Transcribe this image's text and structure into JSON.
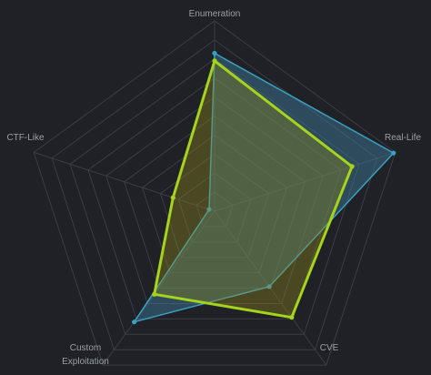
{
  "chart_data": {
    "type": "radar",
    "axes": [
      "Enumeration",
      "Real-Life",
      "CVE",
      "Custom Exploitation",
      "CTF-Like"
    ],
    "axis_label_lines": [
      [
        "Enumeration"
      ],
      [
        "Real-Life"
      ],
      [
        "CVE"
      ],
      [
        "Custom",
        "Exploitation"
      ],
      [
        "CTF-Like"
      ]
    ],
    "range": [
      0,
      10
    ],
    "rings": 10,
    "series": [
      {
        "values": [
          8.3,
          9.9,
          4.9,
          7.2,
          0.3
        ],
        "color": "#3aa0c0",
        "fill": "#3d7fa0",
        "fill_opacity": 0.45
      },
      {
        "values": [
          7.9,
          7.6,
          6.9,
          5.4,
          2.3
        ],
        "color": "#a6d41c",
        "fill": "#8e8a1c",
        "fill_opacity": 0.38
      }
    ],
    "grid": true,
    "legend": "none"
  },
  "colors": {
    "background": "#1f2126",
    "grid": "#3a3d43",
    "label": "#9aa0a6"
  }
}
